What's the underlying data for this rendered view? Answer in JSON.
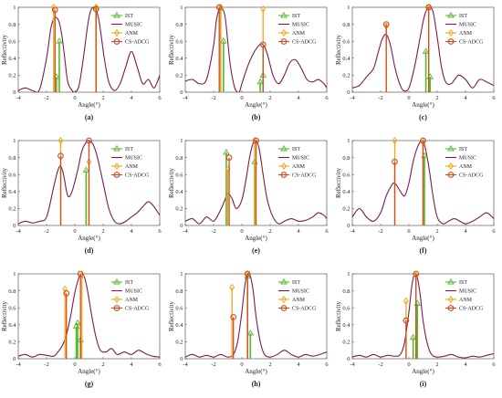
{
  "figure": {
    "colors": {
      "IST": "#55b82e",
      "MUSIC": "#7d1c4a",
      "ANM": "#f2a516",
      "CS-ADCG": "#d44a1a"
    },
    "legend_position": "top-right"
  },
  "chart_data": [
    {
      "type": "line",
      "panel_label": "(a)",
      "xlabel": "Angle(°)",
      "ylabel": "Reflectivity",
      "xlim": [
        -4,
        6
      ],
      "ylim": [
        0,
        1
      ],
      "xticks": [
        "-4",
        "-2",
        "0",
        "2",
        "4",
        "6"
      ],
      "yticks": [
        "0",
        "0.2",
        "0.4",
        "0.6",
        "0.8",
        "1"
      ],
      "legend": [
        "IST",
        "MUSIC",
        "ANM",
        "CS-ADCG"
      ],
      "music_curve": {
        "x": [
          -4,
          -3.5,
          -3,
          -2.5,
          -2,
          -1.7,
          -1.5,
          -1.3,
          -1.1,
          -0.9,
          -0.7,
          -0.5,
          -0.2,
          0,
          0.3,
          0.6,
          0.9,
          1.1,
          1.3,
          1.5,
          1.7,
          1.9,
          2.1,
          2.4,
          2.8,
          3.2,
          3.6,
          4,
          4.4,
          4.8,
          5.2,
          5.6,
          6
        ],
        "y": [
          0.02,
          0.05,
          0.02,
          0.03,
          0.4,
          0.75,
          0.86,
          0.88,
          0.82,
          0.65,
          0.38,
          0.12,
          0.02,
          0,
          0.08,
          0.4,
          0.78,
          0.95,
          1,
          0.97,
          0.85,
          0.62,
          0.38,
          0.12,
          0.02,
          0.1,
          0.3,
          0.48,
          0.3,
          0.1,
          0.15,
          0.05,
          0.2
        ]
      },
      "stems": [
        {
          "series": "IST",
          "x": [
            -1.3,
            -1.1,
            1.5
          ],
          "y": [
            0.18,
            0.6,
            1.0
          ]
        },
        {
          "series": "ANM",
          "x": [
            -1.5,
            1.5
          ],
          "y": [
            1.0,
            1.0
          ]
        },
        {
          "series": "CS-ADCG",
          "x": [
            -1.4,
            1.5
          ],
          "y": [
            0.97,
            0.98
          ]
        }
      ]
    },
    {
      "type": "line",
      "panel_label": "(b)",
      "xlabel": "Angle(°)",
      "ylabel": "Reflectivity",
      "xlim": [
        -4,
        6
      ],
      "ylim": [
        0,
        1
      ],
      "xticks": [
        "-4",
        "-2",
        "0",
        "2",
        "4",
        "6"
      ],
      "yticks": [
        "0",
        "0.2",
        "0.4",
        "0.6",
        "0.8",
        "1"
      ],
      "legend": [
        "IST",
        "MUSIC",
        "ANM",
        "CS-ADCG"
      ],
      "music_curve": {
        "x": [
          -4,
          -3.5,
          -3,
          -2.5,
          -2,
          -1.8,
          -1.5,
          -1.2,
          -1,
          -0.8,
          -0.5,
          -0.2,
          0,
          0.4,
          0.8,
          1.2,
          1.5,
          1.8,
          2.2,
          2.6,
          3,
          3.4,
          3.8,
          4.2,
          4.6,
          5,
          5.4,
          5.8,
          6
        ],
        "y": [
          0.13,
          0.15,
          0.1,
          0.15,
          0.55,
          0.85,
          1,
          0.9,
          0.6,
          0.3,
          0.05,
          0,
          0.1,
          0.3,
          0.45,
          0.55,
          0.56,
          0.45,
          0.2,
          0.1,
          0.2,
          0.35,
          0.38,
          0.28,
          0.15,
          0.12,
          0.15,
          0.1,
          0.05
        ]
      },
      "stems": [
        {
          "series": "IST",
          "x": [
            -1.5,
            -1.3,
            1.3,
            1.5
          ],
          "y": [
            0.99,
            0.6,
            0.12,
            0.2
          ]
        },
        {
          "series": "ANM",
          "x": [
            -1.5,
            1.5
          ],
          "y": [
            1.0,
            0.98
          ]
        },
        {
          "series": "CS-ADCG",
          "x": [
            -1.6,
            1.5
          ],
          "y": [
            1.0,
            0.56
          ]
        }
      ]
    },
    {
      "type": "line",
      "panel_label": "(c)",
      "xlabel": "Angle(°)",
      "ylabel": "Reflectivity",
      "xlim": [
        -4,
        6
      ],
      "ylim": [
        0,
        1
      ],
      "xticks": [
        "-4",
        "-2",
        "0",
        "2",
        "4",
        "6"
      ],
      "yticks": [
        "0",
        "0.2",
        "0.4",
        "0.6",
        "0.8",
        "1"
      ],
      "legend": [
        "IST",
        "MUSIC",
        "ANM",
        "CS-ADCG"
      ],
      "music_curve": {
        "x": [
          -4,
          -3.5,
          -3,
          -2.5,
          -2.2,
          -1.9,
          -1.6,
          -1.3,
          -1,
          -0.7,
          -0.4,
          0,
          0.4,
          0.8,
          1.1,
          1.4,
          1.7,
          2,
          2.3,
          2.6,
          3,
          3.5,
          4,
          4.5,
          5,
          5.5,
          6
        ],
        "y": [
          0.05,
          0.08,
          0.18,
          0.28,
          0.45,
          0.62,
          0.68,
          0.55,
          0.3,
          0.12,
          0.02,
          0.05,
          0.3,
          0.65,
          0.9,
          1,
          0.95,
          0.65,
          0.3,
          0.12,
          0.1,
          0.2,
          0.15,
          0.05,
          0.15,
          0.12,
          0.08
        ]
      },
      "stems": [
        {
          "series": "IST",
          "x": [
            1.2,
            1.5
          ],
          "y": [
            0.48,
            0.18
          ]
        },
        {
          "series": "ANM",
          "x": [
            -1.6,
            1.4
          ],
          "y": [
            0.78,
            1.0
          ]
        },
        {
          "series": "CS-ADCG",
          "x": [
            -1.6,
            1.4
          ],
          "y": [
            0.8,
            1.0
          ]
        }
      ]
    },
    {
      "type": "line",
      "panel_label": "(d)",
      "xlabel": "Angle(°)",
      "ylabel": "Reflectivity",
      "xlim": [
        -4,
        6
      ],
      "ylim": [
        0,
        1
      ],
      "xticks": [
        "-4",
        "-2",
        "0",
        "2",
        "4",
        "6"
      ],
      "yticks": [
        "0",
        "0.2",
        "0.4",
        "0.6",
        "0.8",
        "1"
      ],
      "legend": [
        "IST",
        "MUSIC",
        "ANM",
        "CS-ADCG"
      ],
      "music_curve": {
        "x": [
          -4,
          -3.5,
          -3,
          -2.5,
          -2,
          -1.5,
          -1.2,
          -1,
          -0.8,
          -0.5,
          -0.2,
          0.2,
          0.5,
          0.8,
          1,
          1.3,
          1.6,
          2,
          2.4,
          2.8,
          3.2,
          3.6,
          4,
          4.4,
          4.8,
          5.2,
          5.6,
          6
        ],
        "y": [
          0.02,
          0.05,
          0.03,
          0.05,
          0.1,
          0.45,
          0.65,
          0.7,
          0.6,
          0.35,
          0.4,
          0.65,
          0.88,
          0.98,
          1,
          0.95,
          0.8,
          0.5,
          0.2,
          0.05,
          0.02,
          0.05,
          0.1,
          0.15,
          0.22,
          0.28,
          0.22,
          0.12
        ]
      },
      "stems": [
        {
          "series": "IST",
          "x": [
            0.8
          ],
          "y": [
            0.65
          ]
        },
        {
          "series": "ANM",
          "x": [
            -1,
            1
          ],
          "y": [
            1.0,
            0.75
          ]
        },
        {
          "series": "CS-ADCG",
          "x": [
            -1,
            1
          ],
          "y": [
            0.82,
            1.0
          ]
        }
      ]
    },
    {
      "type": "line",
      "panel_label": "(e)",
      "xlabel": "Angle(°)",
      "ylabel": "Reflectivity",
      "xlim": [
        -4,
        6
      ],
      "ylim": [
        0,
        1
      ],
      "xticks": [
        "-4",
        "-2",
        "0",
        "2",
        "4",
        "6"
      ],
      "yticks": [
        "0",
        "0.2",
        "0.4",
        "0.6",
        "0.8",
        "1"
      ],
      "legend": [
        "IST",
        "MUSIC",
        "ANM",
        "CS-ADCG"
      ],
      "music_curve": {
        "x": [
          -4,
          -3.5,
          -3,
          -2.5,
          -2,
          -1.6,
          -1.2,
          -1,
          -0.7,
          -0.4,
          0,
          0.3,
          0.6,
          0.9,
          1.2,
          1.5,
          1.8,
          2.2,
          2.6,
          3,
          3.5,
          4,
          4.5,
          5,
          5.4,
          5.8,
          6
        ],
        "y": [
          0.05,
          0.08,
          0.02,
          0.1,
          0.05,
          0.15,
          0.3,
          0.38,
          0.32,
          0.2,
          0.3,
          0.55,
          0.85,
          1,
          0.92,
          0.6,
          0.3,
          0.1,
          0.02,
          0.05,
          0.08,
          0.05,
          0.06,
          0.1,
          0.15,
          0.12,
          0.08
        ]
      },
      "stems": [
        {
          "series": "IST",
          "x": [
            -1.1,
            0.9
          ],
          "y": [
            0.86,
            0.75
          ]
        },
        {
          "series": "ANM",
          "x": [
            -1,
            0.9
          ],
          "y": [
            0.66,
            1.0
          ]
        },
        {
          "series": "CS-ADCG",
          "x": [
            -0.9,
            1
          ],
          "y": [
            0.8,
            1.0
          ]
        }
      ]
    },
    {
      "type": "line",
      "panel_label": "(f)",
      "xlabel": "Angle(°)",
      "ylabel": "Reflectivity",
      "xlim": [
        -4,
        6
      ],
      "ylim": [
        0,
        1
      ],
      "xticks": [
        "-4",
        "-2",
        "0",
        "2",
        "4",
        "6"
      ],
      "yticks": [
        "0",
        "0.2",
        "0.4",
        "0.6",
        "0.8",
        "1"
      ],
      "legend": [
        "IST",
        "MUSIC",
        "ANM",
        "CS-ADCG"
      ],
      "music_curve": {
        "x": [
          -4,
          -3.5,
          -3,
          -2.5,
          -2,
          -1.6,
          -1.3,
          -1.1,
          -0.9,
          -0.6,
          -0.3,
          0,
          0.3,
          0.6,
          0.9,
          1.1,
          1.4,
          1.7,
          2,
          2.4,
          2.8,
          3.2,
          3.6,
          4,
          4.5,
          5,
          5.5,
          6
        ],
        "y": [
          0.1,
          0.2,
          0.1,
          0.05,
          0.15,
          0.35,
          0.45,
          0.5,
          0.48,
          0.4,
          0.35,
          0.5,
          0.75,
          0.92,
          1,
          0.95,
          0.7,
          0.35,
          0.1,
          0.02,
          0.05,
          0.08,
          0.05,
          0.02,
          0.05,
          0.1,
          0.15,
          0.08
        ]
      },
      "stems": [
        {
          "series": "IST",
          "x": [
            1.1
          ],
          "y": [
            0.82
          ]
        },
        {
          "series": "ANM",
          "x": [
            -1,
            1
          ],
          "y": [
            1.0,
            0.98
          ]
        },
        {
          "series": "CS-ADCG",
          "x": [
            -1,
            1
          ],
          "y": [
            0.75,
            1.0
          ]
        }
      ]
    },
    {
      "type": "line",
      "panel_label": "(g)",
      "xlabel": "Angle(°)",
      "ylabel": "Reflectivity",
      "xlim": [
        -4,
        6
      ],
      "ylim": [
        0,
        1
      ],
      "xticks": [
        "-4",
        "-2",
        "0",
        "2",
        "4",
        "6"
      ],
      "yticks": [
        "0",
        "0.2",
        "0.4",
        "0.6",
        "0.8",
        "1"
      ],
      "legend": [
        "IST",
        "MUSIC",
        "ANM",
        "CS-ADCG"
      ],
      "music_curve": {
        "x": [
          -4,
          -3.5,
          -3,
          -2.5,
          -2,
          -1.5,
          -1.2,
          -0.9,
          -0.6,
          -0.3,
          0,
          0.3,
          0.5,
          0.7,
          0.9,
          1.2,
          1.5,
          1.8,
          2.2,
          2.6,
          3,
          3.5,
          4,
          4.5,
          5,
          5.5,
          6
        ],
        "y": [
          0.03,
          0.05,
          0.02,
          0.05,
          0.04,
          0.03,
          0.08,
          0.15,
          0.28,
          0.5,
          0.78,
          0.96,
          1,
          0.95,
          0.8,
          0.5,
          0.25,
          0.1,
          0.08,
          0.12,
          0.05,
          0.08,
          0.05,
          0.1,
          0.06,
          0.03,
          0.02
        ]
      },
      "stems": [
        {
          "series": "IST",
          "x": [
            0.1,
            0.2,
            0.4
          ],
          "y": [
            0.38,
            0.42,
            0.22
          ]
        },
        {
          "series": "ANM",
          "x": [
            -0.7,
            0.5
          ],
          "y": [
            0.82,
            0.98
          ]
        },
        {
          "series": "CS-ADCG",
          "x": [
            -0.6,
            0.4
          ],
          "y": [
            0.77,
            1.0
          ]
        }
      ]
    },
    {
      "type": "line",
      "panel_label": "(h)",
      "xlabel": "Angle(°)",
      "ylabel": "Reflectivity",
      "xlim": [
        -4,
        6
      ],
      "ylim": [
        0,
        1
      ],
      "xticks": [
        "-4",
        "-2",
        "0",
        "2",
        "4",
        "6"
      ],
      "yticks": [
        "0",
        "0.2",
        "0.4",
        "0.6",
        "0.8",
        "1"
      ],
      "legend": [
        "IST",
        "MUSIC",
        "ANM",
        "CS-ADCG"
      ],
      "music_curve": {
        "x": [
          -4,
          -3.5,
          -3,
          -2.5,
          -2,
          -1.5,
          -1,
          -0.6,
          -0.3,
          0,
          0.2,
          0.4,
          0.6,
          0.8,
          1,
          1.3,
          1.6,
          2,
          2.5,
          3,
          3.5,
          4,
          4.5,
          5,
          5.5,
          6
        ],
        "y": [
          0.02,
          0.05,
          0.02,
          0.04,
          0.02,
          0.05,
          0.02,
          0.05,
          0.2,
          0.55,
          0.85,
          1,
          0.97,
          0.8,
          0.5,
          0.2,
          0.05,
          0.02,
          0.05,
          0.1,
          0.05,
          0.02,
          0.05,
          0.03,
          0.05,
          0.08
        ]
      },
      "stems": [
        {
          "series": "IST",
          "x": [
            0.4,
            0.6
          ],
          "y": [
            0.97,
            0.3
          ]
        },
        {
          "series": "ANM",
          "x": [
            -0.7,
            0.4
          ],
          "y": [
            0.84,
            1.0
          ]
        },
        {
          "series": "CS-ADCG",
          "x": [
            -0.6,
            0.4
          ],
          "y": [
            0.49,
            1.0
          ]
        }
      ]
    },
    {
      "type": "line",
      "panel_label": "(i)",
      "xlabel": "Angle(°)",
      "ylabel": "Reflectivity",
      "xlim": [
        -4,
        6
      ],
      "ylim": [
        0,
        1
      ],
      "xticks": [
        "-4",
        "-2",
        "0",
        "2",
        "4",
        "6"
      ],
      "yticks": [
        "0",
        "0.2",
        "0.4",
        "0.6",
        "0.8",
        "1"
      ],
      "legend": [
        "IST",
        "MUSIC",
        "ANM",
        "CS-ADCG"
      ],
      "music_curve": {
        "x": [
          -4,
          -3.5,
          -3,
          -2.5,
          -2,
          -1.5,
          -1,
          -0.6,
          -0.3,
          0,
          0.2,
          0.4,
          0.6,
          0.8,
          1,
          1.3,
          1.6,
          2,
          2.5,
          3,
          3.5,
          4,
          4.5,
          5,
          5.5,
          6
        ],
        "y": [
          0.02,
          0.04,
          0.02,
          0.05,
          0.02,
          0.04,
          0.03,
          0.05,
          0.2,
          0.55,
          0.85,
          1,
          0.95,
          0.75,
          0.45,
          0.18,
          0.05,
          0.02,
          0.03,
          0.05,
          0.02,
          0.01,
          0.03,
          0.02,
          0.04,
          0.06
        ]
      },
      "stems": [
        {
          "series": "IST",
          "x": [
            0.3,
            0.6
          ],
          "y": [
            0.25,
            0.65
          ]
        },
        {
          "series": "ANM",
          "x": [
            -0.2,
            0.5
          ],
          "y": [
            0.68,
            0.98
          ]
        },
        {
          "series": "CS-ADCG",
          "x": [
            -0.2,
            0.5
          ],
          "y": [
            0.45,
            1.0
          ]
        }
      ]
    }
  ]
}
